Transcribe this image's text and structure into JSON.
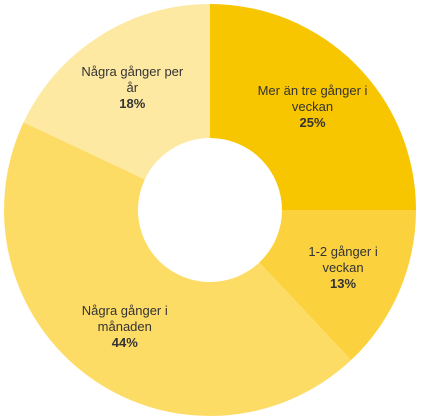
{
  "chart_data": {
    "type": "donut",
    "categories": [
      "Mer än tre gånger i veckan",
      "1-2 gånger i veckan",
      "Några gånger i månaden",
      "Några gånger per år"
    ],
    "values": [
      25,
      13,
      44,
      18
    ],
    "value_labels": [
      "25%",
      "13%",
      "44%",
      "18%"
    ],
    "colors": [
      "#f7c600",
      "#fbd23e",
      "#fddc66",
      "#fee9a3"
    ]
  }
}
